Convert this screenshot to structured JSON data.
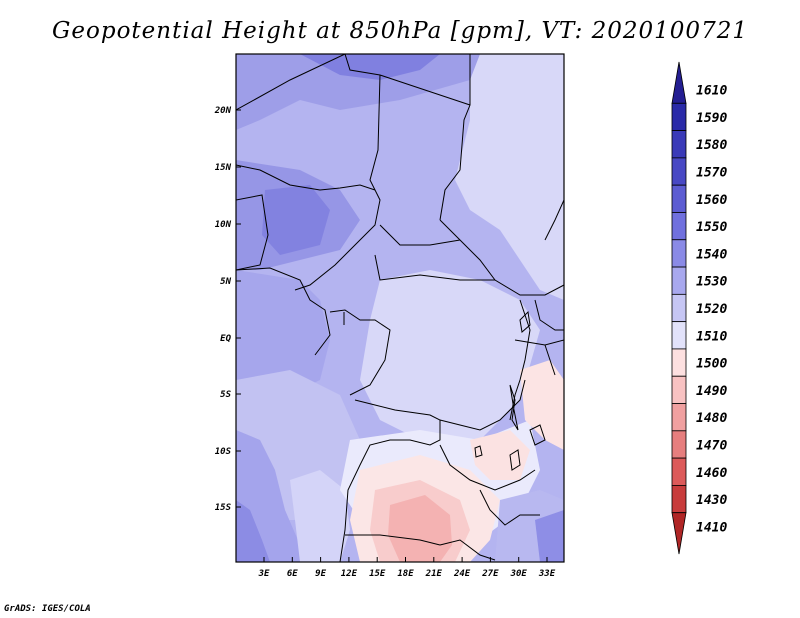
{
  "title": "Geopotential Height at 850hPa [gpm], VT: 2020100721",
  "credit": "GrADS: IGES/COLA",
  "map": {
    "region": "Central and Southern Africa",
    "lat_ticks": [
      "20N",
      "15N",
      "10N",
      "5N",
      "EQ",
      "5S",
      "10S",
      "15S"
    ],
    "lon_ticks": [
      "3E",
      "6E",
      "9E",
      "12E",
      "15E",
      "18E",
      "21E",
      "24E",
      "27E",
      "30E",
      "33E"
    ]
  },
  "colorbar": {
    "levels": [
      "1610",
      "1590",
      "1580",
      "1570",
      "1560",
      "1550",
      "1540",
      "1530",
      "1520",
      "1510",
      "1500",
      "1490",
      "1480",
      "1470",
      "1460",
      "1430",
      "1410"
    ],
    "colors": [
      "#241e92",
      "#2a2aa8",
      "#3a3ab8",
      "#4848c4",
      "#5c5cd2",
      "#7070de",
      "#8a8ae6",
      "#a8a8ee",
      "#c6c6f4",
      "#e2e2fa",
      "#fde0e0",
      "#f8c2c2",
      "#f0a0a0",
      "#e67e7e",
      "#dc5a5a",
      "#c83c3c",
      "#b02626"
    ]
  }
}
